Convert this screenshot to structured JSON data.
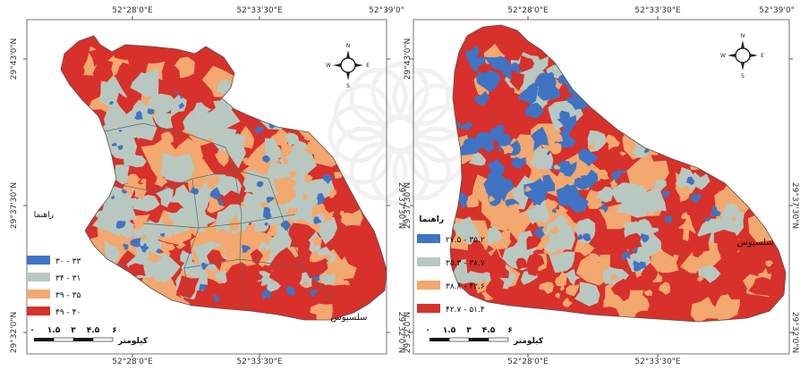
{
  "colors": {
    "cool": "#3f73c4",
    "mild": "#b8c8c0",
    "warm": "#f2a86e",
    "hot": "#d8302a",
    "frame": "#777777",
    "watermark": "#cfcfcf"
  },
  "maps": [
    {
      "top_coords": [
        "52°28'0\"E",
        "52°33'30\"E",
        "52°39'0\""
      ],
      "bottom_coords": [
        "52°28'0\"E",
        "52°33'30\"E"
      ],
      "left_coords": [
        "29°43'0\"N",
        "29°37'30\"N",
        "29°32'0\"N"
      ],
      "right_coords": [
        "29°37'30\"N",
        "29°32'0\"N"
      ],
      "legend_title": "راهنما",
      "legend": [
        {
          "label": "۳۰ - ۳۳",
          "color": "#3f73c4"
        },
        {
          "label": "۳۴ - ۳۱",
          "color": "#b8c8c0"
        },
        {
          "label": "۳۹ - ۳۵",
          "color": "#f2a86e"
        },
        {
          "label": "۴۹ - ۴۰",
          "color": "#d8302a"
        }
      ],
      "scale_ticks": [
        "۰",
        "۱.۵",
        "۳",
        "۴.۵",
        "۶"
      ],
      "scale_unit": "کیلومتر",
      "city_label": "سلسیوس",
      "compass": {
        "n": "N",
        "e": "E",
        "s": "S",
        "w": "W"
      }
    },
    {
      "top_coords": [
        "52°28'0\"E",
        "52°33'30\"E",
        "52°39'0\""
      ],
      "bottom_coords": [
        "52°28'0\"E",
        "52°33'30\"E"
      ],
      "left_coords": [
        "29°43'0\"N",
        "29°37'30\"N",
        "29°32'0\"N"
      ],
      "right_coords": [
        "29°37'30\"N",
        "29°32'0\"N"
      ],
      "legend_title": "راهنما",
      "legend": [
        {
          "label": "۲۷.۵ - ۳۵.۲",
          "color": "#3f73c4"
        },
        {
          "label": "۳۵.۳ - ۳۸.۷",
          "color": "#b8c8c0"
        },
        {
          "label": "۳۸.۸ - ۴۲.۶",
          "color": "#f2a86e"
        },
        {
          "label": "۴۲.۷ - ۵۱.۴",
          "color": "#d8302a"
        }
      ],
      "scale_ticks": [
        "۰",
        "۱.۵",
        "۳",
        "۴.۵",
        "۶"
      ],
      "scale_unit": "کیلومتر",
      "city_label": "سلسیوس",
      "compass": {
        "n": "N",
        "e": "E",
        "s": "S",
        "w": "W"
      }
    }
  ]
}
